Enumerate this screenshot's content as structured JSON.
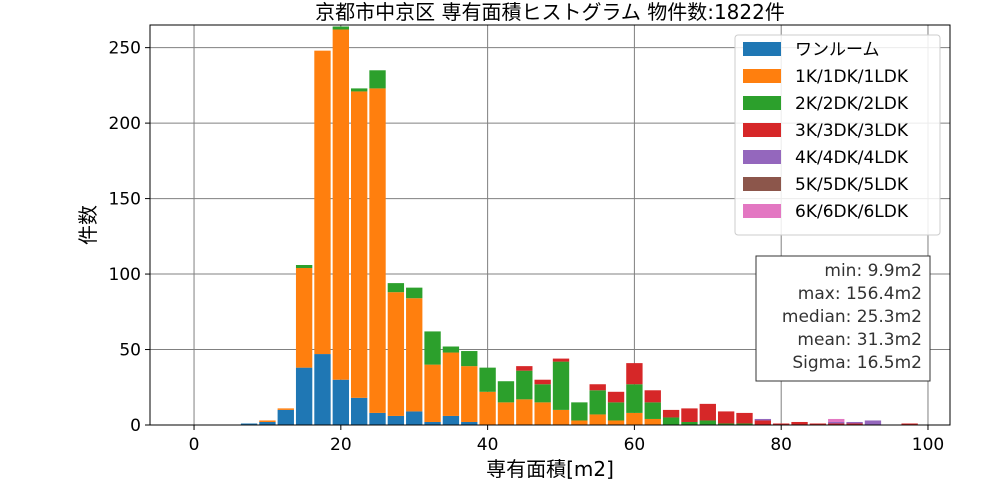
{
  "chart_data": {
    "type": "bar",
    "stacked": true,
    "title": "京都市中京区 専有面積ヒストグラム 物件数:1822件",
    "xlabel": "専有面積[m2]",
    "ylabel": "件数",
    "xlim": [
      -6,
      103
    ],
    "ylim": [
      0,
      265
    ],
    "x_ticks": [
      0,
      20,
      40,
      60,
      80,
      100
    ],
    "y_ticks": [
      0,
      50,
      100,
      150,
      200,
      250
    ],
    "bin_width": 2.5,
    "grid": true,
    "legend_position": "top-right",
    "x": [
      7.5,
      10,
      12.5,
      15,
      17.5,
      20,
      22.5,
      25,
      27.5,
      30,
      32.5,
      35,
      37.5,
      40,
      42.5,
      45,
      47.5,
      50,
      52.5,
      55,
      57.5,
      60,
      62.5,
      65,
      67.5,
      70,
      72.5,
      75,
      77.5,
      80,
      82.5,
      85,
      87.5,
      90,
      92.5,
      95,
      97.5
    ],
    "series": [
      {
        "name": "ワンルーム",
        "color": "#1f77b4",
        "values": [
          1,
          2,
          10,
          38,
          47,
          30,
          18,
          8,
          6,
          9,
          2,
          6,
          2,
          0,
          0,
          0,
          0,
          0,
          0,
          0,
          0,
          0,
          0,
          0,
          0,
          0,
          0,
          0,
          0,
          0,
          0,
          0,
          0,
          0,
          0,
          0,
          0
        ]
      },
      {
        "name": "1K/1DK/1LDK",
        "color": "#ff7f0e",
        "values": [
          0,
          1,
          1,
          66,
          201,
          232,
          203,
          215,
          82,
          75,
          38,
          42,
          37,
          22,
          15,
          17,
          15,
          10,
          3,
          7,
          3,
          8,
          4,
          0,
          0,
          0,
          0,
          0,
          0,
          0,
          0,
          0,
          0,
          0,
          0,
          0,
          0
        ]
      },
      {
        "name": "2K/2DK/2LDK",
        "color": "#2ca02c",
        "values": [
          0,
          0,
          0,
          2,
          0,
          2,
          2,
          12,
          6,
          7,
          22,
          4,
          10,
          16,
          14,
          19,
          12,
          32,
          12,
          16,
          12,
          19,
          11,
          5,
          2,
          3,
          1,
          1,
          0,
          0,
          0,
          0,
          0,
          0,
          0,
          0,
          0
        ]
      },
      {
        "name": "3K/3DK/3LDK",
        "color": "#d62728",
        "values": [
          0,
          0,
          0,
          0,
          0,
          0,
          0,
          0,
          0,
          0,
          0,
          0,
          0,
          0,
          0,
          3,
          3,
          2,
          0,
          4,
          7,
          14,
          8,
          5,
          9,
          11,
          8,
          7,
          3,
          1,
          2,
          1,
          1,
          1,
          0,
          0,
          1
        ]
      },
      {
        "name": "4K/4DK/4LDK",
        "color": "#9467bd",
        "values": [
          0,
          0,
          0,
          0,
          0,
          0,
          0,
          0,
          0,
          0,
          0,
          0,
          0,
          0,
          0,
          0,
          0,
          0,
          0,
          0,
          0,
          0,
          0,
          0,
          0,
          0,
          0,
          0,
          1,
          0,
          0,
          0,
          1,
          1,
          3,
          0,
          0
        ]
      },
      {
        "name": "5K/5DK/5LDK",
        "color": "#8c564b",
        "values": [
          0,
          0,
          0,
          0,
          0,
          0,
          0,
          0,
          0,
          0,
          0,
          0,
          0,
          0,
          0,
          0,
          0,
          0,
          0,
          0,
          0,
          0,
          0,
          0,
          0,
          0,
          0,
          0,
          0,
          0,
          0,
          0,
          0,
          0,
          0,
          0,
          0
        ]
      },
      {
        "name": "6K/6DK/6LDK",
        "color": "#e377c2",
        "values": [
          0,
          0,
          0,
          0,
          0,
          0,
          0,
          0,
          0,
          0,
          0,
          0,
          0,
          0,
          0,
          0,
          0,
          0,
          0,
          0,
          0,
          0,
          0,
          0,
          0,
          0,
          0,
          0,
          0,
          0,
          0,
          0,
          2,
          0,
          0,
          0,
          0
        ]
      }
    ],
    "stats_box": {
      "position": "right",
      "lines": [
        "min: 9.9m2",
        "max: 156.4m2",
        "median: 25.3m2",
        "mean: 31.3m2",
        "Sigma: 16.5m2"
      ]
    }
  }
}
